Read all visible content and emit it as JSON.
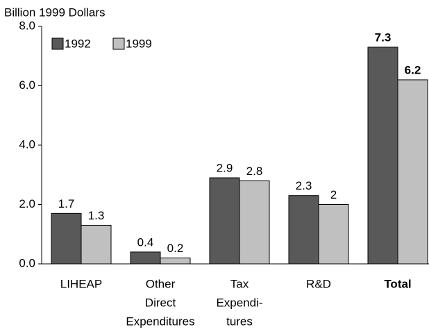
{
  "chart_data": {
    "type": "bar",
    "y_axis_label": "Billion 1999 Dollars",
    "categories": [
      [
        "LIHEAP"
      ],
      [
        "Other",
        "Direct",
        "Expenditures"
      ],
      [
        "Tax",
        "Expendi-",
        "tures"
      ],
      [
        "R&D"
      ],
      [
        "Total"
      ]
    ],
    "emphasis": [
      false,
      false,
      false,
      false,
      true
    ],
    "series": [
      {
        "name": "1992",
        "color": "#595959",
        "values": [
          1.7,
          0.4,
          2.9,
          2.3,
          7.3
        ]
      },
      {
        "name": "1999",
        "color": "#c0c0c0",
        "values": [
          1.3,
          0.2,
          2.8,
          2.0,
          6.2
        ]
      }
    ],
    "ylim": [
      0,
      8
    ],
    "yticks": [
      {
        "value": 0,
        "label": "0.0"
      },
      {
        "value": 2,
        "label": "2.0"
      },
      {
        "value": 4,
        "label": "4.0"
      },
      {
        "value": 6,
        "label": "6.0"
      },
      {
        "value": 8,
        "label": "8.0"
      }
    ],
    "legend": "top-left"
  }
}
